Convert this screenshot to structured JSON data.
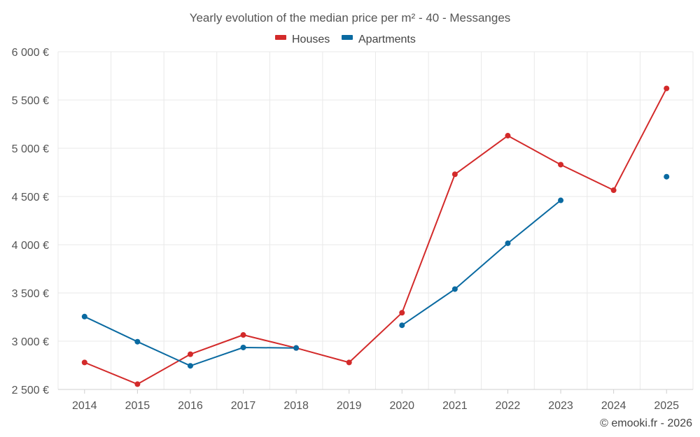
{
  "chart_data": {
    "type": "line",
    "title": "Yearly evolution of the median price per m² - 40 - Messanges",
    "categories": [
      "2014",
      "2015",
      "2016",
      "2017",
      "2018",
      "2019",
      "2020",
      "2021",
      "2022",
      "2023",
      "2024",
      "2025"
    ],
    "series": [
      {
        "name": "Houses",
        "color": "#d32a2a",
        "values": [
          2780,
          2555,
          2865,
          3065,
          2930,
          2780,
          3295,
          4730,
          5130,
          4830,
          4565,
          5620
        ]
      },
      {
        "name": "Apartments",
        "color": "#0a6aa1",
        "values": [
          3255,
          2995,
          2745,
          2935,
          2930,
          null,
          3165,
          3540,
          4015,
          4460,
          null,
          4705
        ]
      }
    ],
    "ylim": [
      2500,
      6000
    ],
    "yticks": [
      2500,
      3000,
      3500,
      4000,
      4500,
      5000,
      5500,
      6000
    ],
    "ytick_labels": [
      "2 500 €",
      "3 000 €",
      "3 500 €",
      "4 000 €",
      "4 500 €",
      "5 000 €",
      "5 500 €",
      "6 000 €"
    ],
    "legend_position": "top-center",
    "grid": true,
    "credit": "© emooki.fr - 2026"
  }
}
